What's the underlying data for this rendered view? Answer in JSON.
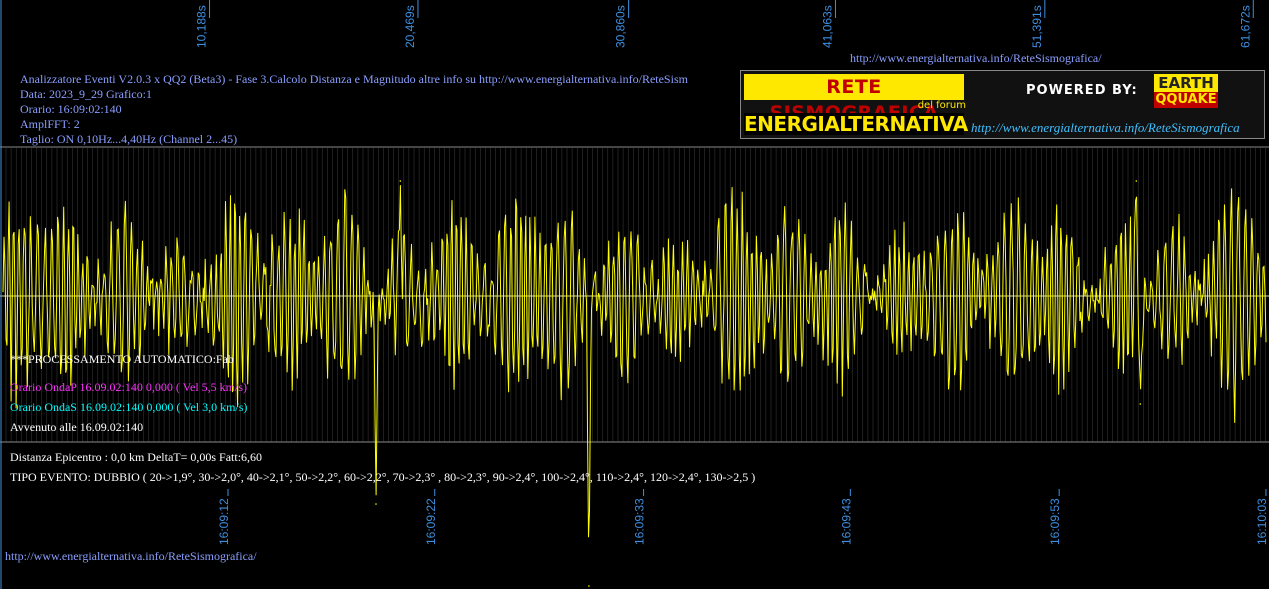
{
  "header": {
    "top_url": "http://www.energialternativa.info/ReteSismografica/",
    "lines": [
      "Analizzatore Eventi V2.0.3 x QQ2 (Beta3) - Fase 3.Calcolo Distanza e Magnitudo altre info su http://www.energialternativa.info/ReteSism",
      "Data: 2023_9_29 Grafico:1",
      "Orario: 16:09:02:140",
      "AmplFFT: 2",
      "Taglio: ON 0,10Hz...4,40Hz       (Channel 2...45)"
    ]
  },
  "banner": {
    "rete": "RETE SISMOGRAFICA",
    "del_forum": "del forum",
    "energialternativa": "ENERGIALTERNATIVA",
    "powered": "POWERED BY:",
    "earth": "EARTH",
    "quake": "QQUAKE",
    "url": "http://www.energialternativa.info/ReteSismografica"
  },
  "processing": {
    "auto": "***PROCESSAMENTO AUTOMATICO:Fab",
    "onda_p": "Orario OndaP 16.09.02:140  0,000 ( Vel 5,5 km/s)",
    "onda_s": "Orario OndaS 16.09.02:140  0,000 ( Vel 3,0 km/s)",
    "avvenuto": "Avvenuto alle 16.09.02:140"
  },
  "results": {
    "distanza": "Distanza Epicentro : 0,0 km DeltaT= 0,00s  Fatt:6,60",
    "tipo": "TIPO EVENTO: DUBBIO ( 20->1,9°, 30->2,0°, 40->2,1°, 50->2,2°, 60->2,2°, 70->2,3° , 80->2,3°, 90->2,4°, 100->2,4°, 110->2,4°, 120->2,4°, 130->2,5 )"
  },
  "footer_url": "http://www.energialternativa.info/ReteSismografica/",
  "colors": {
    "trace": "#ffff00",
    "grid": "#8a8a8a",
    "axis_label": "#3f8fe0",
    "info_blue": "#8a9fff",
    "onda_p": "#ff33ff",
    "onda_s": "#00ffff"
  },
  "chart_data": {
    "type": "line",
    "top_ticks": [
      "10,188s",
      "20,469s",
      "30,860s",
      "41,063s",
      "51,391s",
      "61,672s"
    ],
    "bottom_ticks": [
      "16:09:12",
      "16:09:22",
      "16:09:33",
      "16:09:43",
      "16:09:53",
      "16:10:03"
    ],
    "series": [
      {
        "color": "#ffff00",
        "peaks": [
          {
            "t": 18.4,
            "value": -208
          },
          {
            "t": 19.6,
            "value": 115
          },
          {
            "t": 28.9,
            "value": -290
          },
          {
            "t": 55.9,
            "value": 115
          },
          {
            "t": 56.1,
            "value": -108
          }
        ]
      }
    ],
    "x_range_s": [
      0,
      62.3
    ],
    "grid": true
  }
}
